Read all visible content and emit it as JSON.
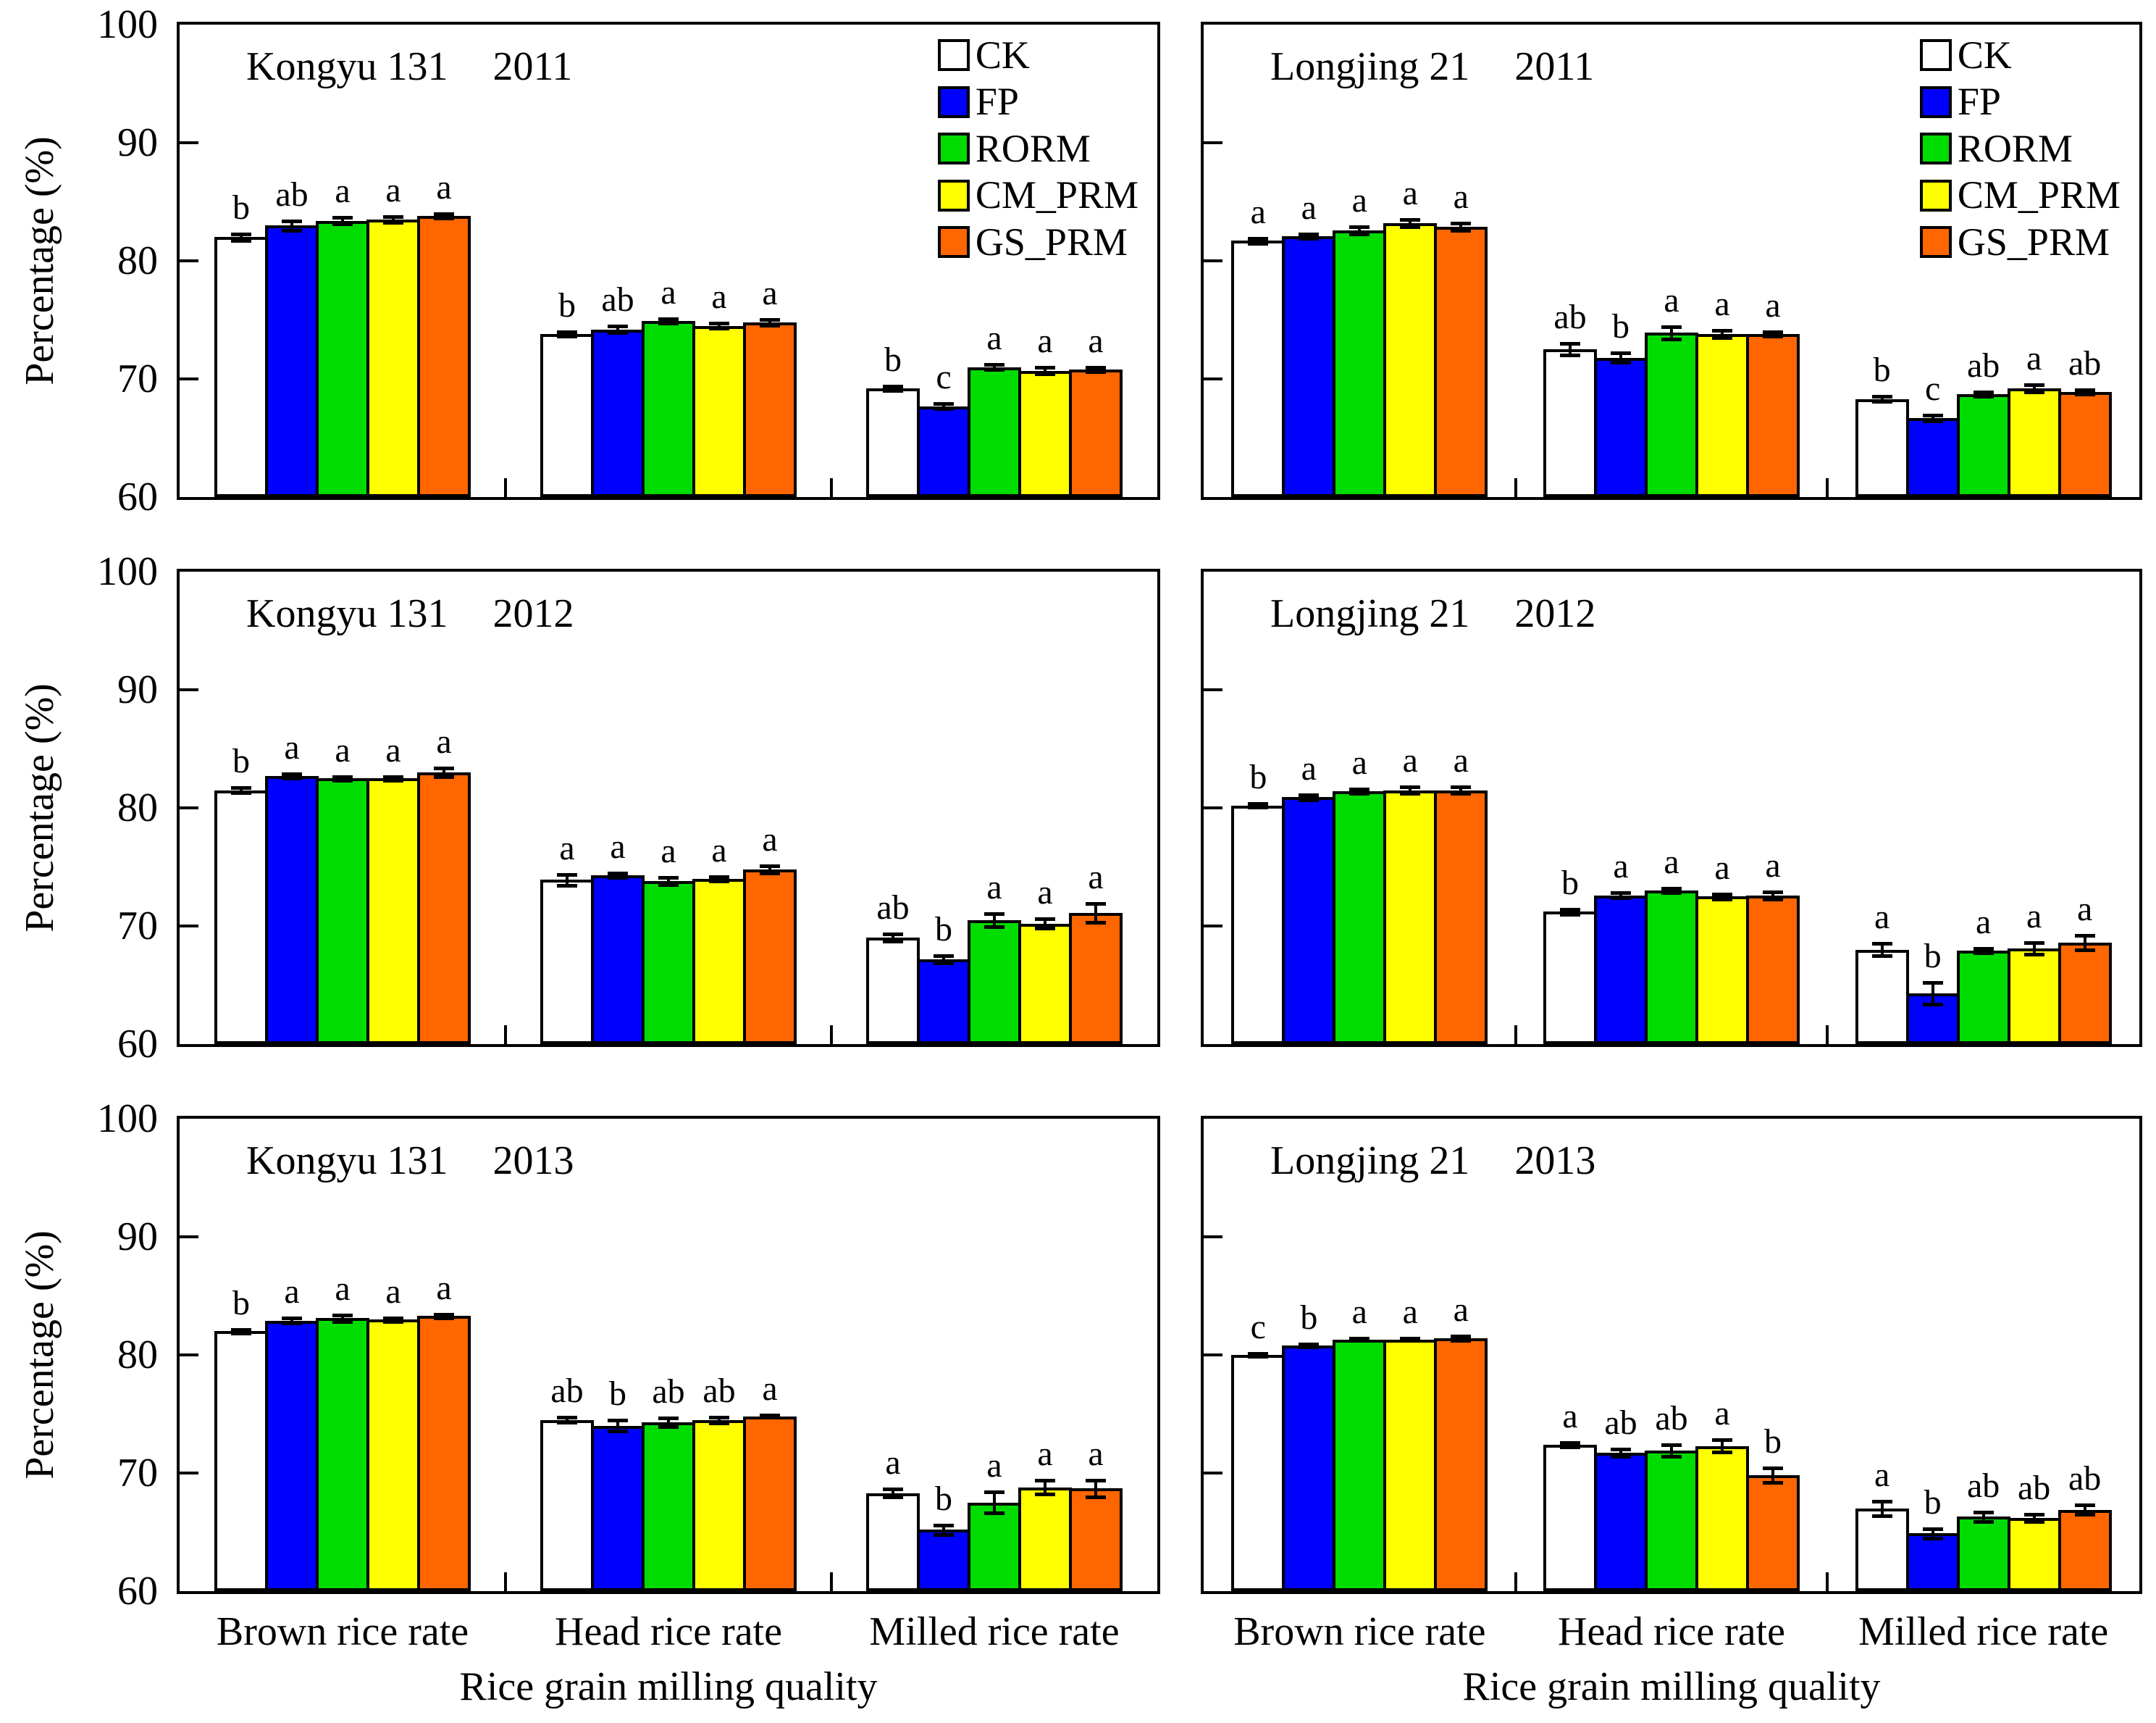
{
  "chart_data": {
    "type": "bar",
    "ylabel": "Percentage (%)",
    "xlabel": "Rice grain milling quality",
    "ylim": [
      60,
      100
    ],
    "yticks": [
      60,
      70,
      80,
      90,
      100
    ],
    "ytick_labels_top_to_bottom": [
      "100",
      "90",
      "80",
      "70",
      "60"
    ],
    "grid": "off",
    "legend_position": "top-right inside top panels",
    "categories": [
      "Brown rice rate",
      "Head rice rate",
      "Milled rice rate"
    ],
    "series_names": [
      "CK",
      "FP",
      "RORM",
      "CM_PRM",
      "GS_PRM"
    ],
    "series_colors": {
      "CK": "#FFFFFF",
      "FP": "#0000FE",
      "RORM": "#00DC00",
      "CM_PRM": "#FFFF00",
      "GS_PRM": "#FF6600"
    },
    "panels": [
      {
        "variety": "Kongyu 131",
        "year": "2011",
        "legend": true,
        "groups": [
          {
            "category": "Brown rice rate",
            "values": [
              82.0,
              83.0,
              83.4,
              83.5,
              83.8
            ],
            "errors": [
              0.3,
              0.4,
              0.3,
              0.25,
              0.2
            ],
            "letters": [
              "b",
              "ab",
              "a",
              "a",
              "a"
            ]
          },
          {
            "category": "Head rice rate",
            "values": [
              73.8,
              74.2,
              74.9,
              74.5,
              74.8
            ],
            "errors": [
              0.2,
              0.25,
              0.2,
              0.2,
              0.25
            ],
            "letters": [
              "b",
              "ab",
              "a",
              "a",
              "a"
            ]
          },
          {
            "category": "Milled rice rate",
            "values": [
              69.2,
              67.7,
              71.0,
              70.7,
              70.8
            ],
            "errors": [
              0.2,
              0.2,
              0.2,
              0.3,
              0.2
            ],
            "letters": [
              "b",
              "c",
              "a",
              "a",
              "a"
            ]
          }
        ]
      },
      {
        "variety": "Longjing 21",
        "year": "2011",
        "legend": true,
        "groups": [
          {
            "category": "Brown rice rate",
            "values": [
              81.7,
              82.1,
              82.6,
              83.2,
              82.9
            ],
            "errors": [
              0.2,
              0.2,
              0.3,
              0.3,
              0.3
            ],
            "letters": [
              "a",
              "a",
              "a",
              "a",
              "a"
            ]
          },
          {
            "category": "Head rice rate",
            "values": [
              72.5,
              71.8,
              73.9,
              73.8,
              73.8
            ],
            "errors": [
              0.5,
              0.4,
              0.5,
              0.3,
              0.2
            ],
            "letters": [
              "ab",
              "b",
              "a",
              "a",
              "a"
            ]
          },
          {
            "category": "Milled rice rate",
            "values": [
              68.3,
              66.7,
              68.7,
              69.2,
              68.9
            ],
            "errors": [
              0.2,
              0.25,
              0.2,
              0.3,
              0.2
            ],
            "letters": [
              "b",
              "c",
              "ab",
              "a",
              "ab"
            ]
          }
        ]
      },
      {
        "variety": "Kongyu 131",
        "year": "2012",
        "legend": false,
        "groups": [
          {
            "category": "Brown rice rate",
            "values": [
              81.5,
              82.7,
              82.5,
              82.5,
              83.0
            ],
            "errors": [
              0.2,
              0.2,
              0.15,
              0.15,
              0.35
            ],
            "letters": [
              "b",
              "a",
              "a",
              "a",
              "a"
            ]
          },
          {
            "category": "Head rice rate",
            "values": [
              73.9,
              74.3,
              73.8,
              74.0,
              74.8
            ],
            "errors": [
              0.45,
              0.2,
              0.3,
              0.2,
              0.3
            ],
            "letters": [
              "a",
              "a",
              "a",
              "a",
              "a"
            ]
          },
          {
            "category": "Milled rice rate",
            "values": [
              69.0,
              67.2,
              70.5,
              70.2,
              71.1
            ],
            "errors": [
              0.3,
              0.3,
              0.55,
              0.4,
              0.8
            ],
            "letters": [
              "ab",
              "b",
              "a",
              "a",
              "a"
            ]
          }
        ]
      },
      {
        "variety": "Longjing 21",
        "year": "2012",
        "legend": false,
        "groups": [
          {
            "category": "Brown rice rate",
            "values": [
              80.2,
              80.9,
              81.4,
              81.5,
              81.5
            ],
            "errors": [
              0.15,
              0.2,
              0.2,
              0.3,
              0.3
            ],
            "letters": [
              "b",
              "a",
              "a",
              "a",
              "a"
            ]
          },
          {
            "category": "Head rice rate",
            "values": [
              71.2,
              72.6,
              73.0,
              72.5,
              72.6
            ],
            "errors": [
              0.2,
              0.2,
              0.2,
              0.2,
              0.3
            ],
            "letters": [
              "b",
              "a",
              "a",
              "a",
              "a"
            ]
          },
          {
            "category": "Milled rice rate",
            "values": [
              68.0,
              64.3,
              67.9,
              68.1,
              68.6
            ],
            "errors": [
              0.5,
              0.9,
              0.2,
              0.5,
              0.6
            ],
            "letters": [
              "a",
              "b",
              "a",
              "a",
              "a"
            ]
          }
        ]
      },
      {
        "variety": "Kongyu 131",
        "year": "2013",
        "legend": false,
        "groups": [
          {
            "category": "Brown rice rate",
            "values": [
              82.0,
              82.9,
              83.1,
              83.0,
              83.3
            ],
            "errors": [
              0.15,
              0.2,
              0.3,
              0.15,
              0.15
            ],
            "letters": [
              "b",
              "a",
              "a",
              "a",
              "a"
            ]
          },
          {
            "category": "Head rice rate",
            "values": [
              74.5,
              74.0,
              74.3,
              74.5,
              74.8
            ],
            "errors": [
              0.2,
              0.45,
              0.35,
              0.25,
              0.1
            ],
            "letters": [
              "ab",
              "b",
              "ab",
              "ab",
              "a"
            ]
          },
          {
            "category": "Milled rice rate",
            "values": [
              68.3,
              65.2,
              67.5,
              68.8,
              68.7
            ],
            "errors": [
              0.35,
              0.4,
              0.9,
              0.6,
              0.7
            ],
            "letters": [
              "a",
              "b",
              "a",
              "a",
              "a"
            ]
          }
        ]
      },
      {
        "variety": "Longjing 21",
        "year": "2013",
        "legend": false,
        "groups": [
          {
            "category": "Brown rice rate",
            "values": [
              80.0,
              80.8,
              81.3,
              81.3,
              81.4
            ],
            "errors": [
              0.1,
              0.15,
              0.1,
              0.1,
              0.2
            ],
            "letters": [
              "c",
              "b",
              "a",
              "a",
              "a"
            ]
          },
          {
            "category": "Head rice rate",
            "values": [
              72.4,
              71.7,
              71.9,
              72.3,
              69.8
            ],
            "errors": [
              0.2,
              0.3,
              0.5,
              0.5,
              0.6
            ],
            "letters": [
              "a",
              "ab",
              "ab",
              "a",
              "b"
            ]
          },
          {
            "category": "Milled rice rate",
            "values": [
              67.0,
              64.9,
              66.3,
              66.2,
              66.9
            ],
            "errors": [
              0.6,
              0.4,
              0.4,
              0.3,
              0.4
            ],
            "letters": [
              "a",
              "b",
              "ab",
              "ab",
              "ab"
            ]
          }
        ]
      }
    ]
  }
}
